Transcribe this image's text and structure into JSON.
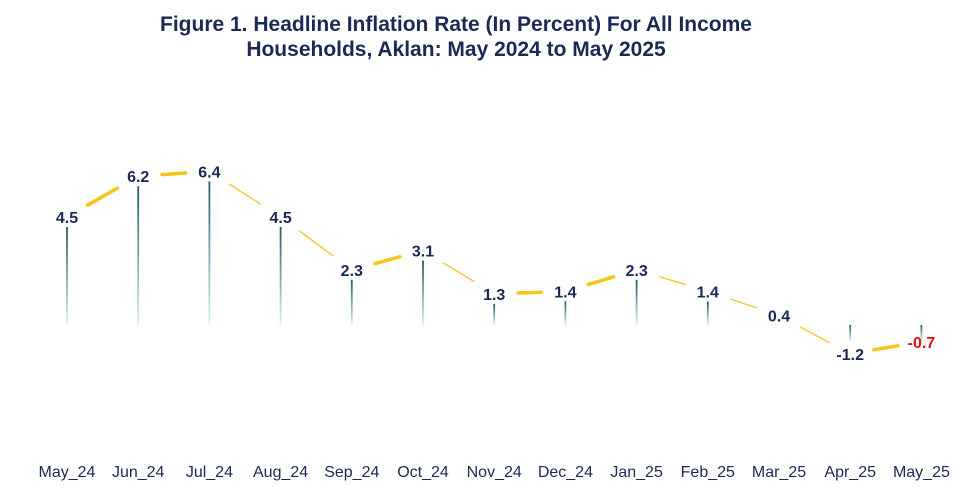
{
  "chart_data": {
    "type": "line",
    "title": "Figure 1. Headline Inflation Rate (In Percent) For All Income Households, Aklan: May 2024 to May 2025",
    "title_lines": [
      "Figure 1. Headline Inflation Rate (In Percent) For All Income",
      "Households, Aklan: May 2024 to May 2025"
    ],
    "categories": [
      "May_24",
      "Jun_24",
      "Jul_24",
      "Aug_24",
      "Sep_24",
      "Oct_24",
      "Nov_24",
      "Dec_24",
      "Jan_25",
      "Feb_25",
      "Mar_25",
      "Apr_25",
      "May_25"
    ],
    "values": [
      4.5,
      6.2,
      6.4,
      4.5,
      2.3,
      3.1,
      1.3,
      1.4,
      2.3,
      1.4,
      0.4,
      -1.2,
      -0.7
    ],
    "data_labels": [
      "4.5",
      "6.2",
      "6.4",
      "4.5",
      "2.3",
      "3.1",
      "1.3",
      "1.4",
      "2.3",
      "1.4",
      "0.4",
      "-1.2",
      "-0.7"
    ],
    "xlabel": "",
    "ylabel": "",
    "grid": false,
    "legend": false,
    "colors": {
      "line": "#f5c518",
      "drop_line": "#2f6f73",
      "label": "#1a2a55",
      "highlight_label": "#e0101a",
      "title": "#1a2a55"
    }
  }
}
